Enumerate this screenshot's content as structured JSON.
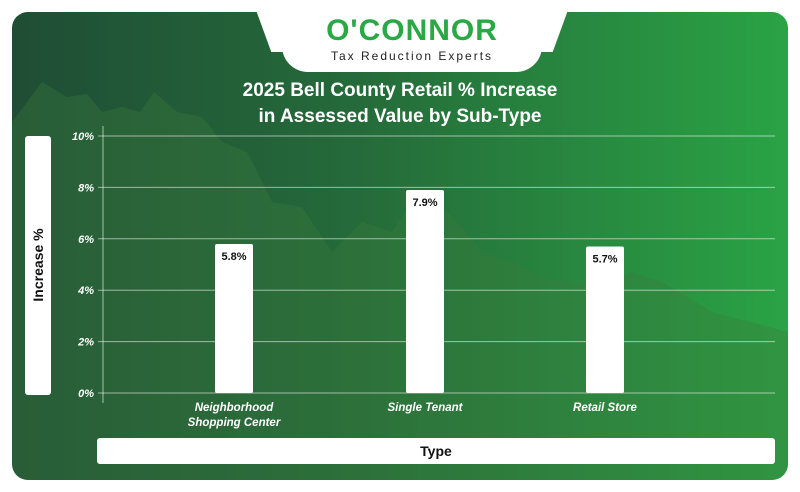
{
  "logo": {
    "name": "O'CONNOR",
    "tagline": "Tax Reduction Experts"
  },
  "colors": {
    "brand_green": "#2aa845",
    "bar": "#ffffff",
    "background_dark": "#1f4d35",
    "background_light": "#2aa345"
  },
  "chart_data": {
    "type": "bar",
    "title_line1": "2025 Bell County Retail % Increase",
    "title_line2": "in Assessed Value by Sub-Type",
    "xlabel": "Type",
    "ylabel": "Increase %",
    "categories": [
      [
        "Neighborhood",
        "Shopping Center"
      ],
      [
        "Single Tenant"
      ],
      [
        "Retail Store"
      ]
    ],
    "values": [
      5.8,
      7.9,
      5.7
    ],
    "data_labels": [
      "5.8%",
      "7.9%",
      "5.7%"
    ],
    "yticks": [
      "0%",
      "2%",
      "4%",
      "6%",
      "8%",
      "10%"
    ],
    "ylim": [
      0,
      10
    ],
    "grid": true
  }
}
